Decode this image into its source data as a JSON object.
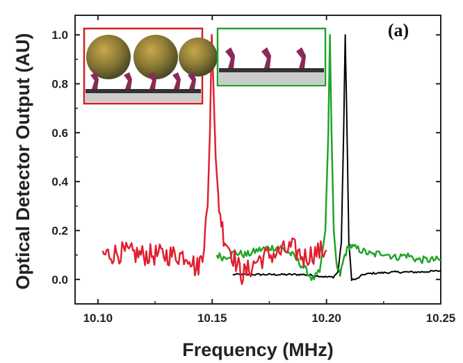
{
  "chart_data": {
    "type": "line",
    "xlabel": "Frequency (MHz)",
    "ylabel": "Optical Detector Output (AU)",
    "panel_label": "(a)",
    "xlim": [
      10.09,
      10.25
    ],
    "ylim": [
      -0.1,
      1.08
    ],
    "x_ticks": [
      10.1,
      10.15,
      10.2,
      10.25
    ],
    "x_tick_labels": [
      "10.10",
      "10.15",
      "10.20",
      "10.25"
    ],
    "y_ticks": [
      0.0,
      0.2,
      0.4,
      0.6,
      0.8,
      1.0
    ],
    "y_tick_labels": [
      "0.0",
      "0.2",
      "0.4",
      "0.6",
      "0.8",
      "1.0"
    ],
    "grid": false,
    "series": [
      {
        "color": "#000000",
        "x": [
          10.159,
          10.17,
          10.18,
          10.19,
          10.196,
          10.2,
          10.203,
          10.205,
          10.2065,
          10.2075,
          10.2082,
          10.209,
          10.2098,
          10.211,
          10.213,
          10.216,
          10.22,
          10.23,
          10.24,
          10.25
        ],
        "y": [
          0.02,
          0.02,
          0.02,
          0.02,
          0.015,
          0.01,
          0.01,
          0.03,
          0.15,
          0.6,
          1.0,
          0.6,
          0.15,
          0.0,
          0.0,
          0.02,
          0.025,
          0.03,
          0.03,
          0.035
        ]
      },
      {
        "color": "#22a32a",
        "x": [
          10.152,
          10.155,
          10.16,
          10.165,
          10.17,
          10.175,
          10.18,
          10.185,
          10.19,
          10.194,
          10.197,
          10.1995,
          10.2008,
          10.2015,
          10.2022,
          10.2032,
          10.2045,
          10.206,
          10.208,
          10.21,
          10.212,
          10.215,
          10.22,
          10.225,
          10.23,
          10.235,
          10.24,
          10.245,
          10.25
        ],
        "y": [
          0.1,
          0.09,
          0.11,
          0.1,
          0.12,
          0.13,
          0.13,
          0.1,
          0.05,
          0.0,
          0.03,
          0.2,
          0.6,
          1.0,
          0.6,
          0.2,
          0.05,
          0.02,
          0.1,
          0.14,
          0.13,
          0.12,
          0.1,
          0.11,
          0.09,
          0.1,
          0.08,
          0.08,
          0.08
        ]
      },
      {
        "color": "#e02030",
        "x": [
          10.102,
          10.11,
          10.12,
          10.13,
          10.14,
          10.143,
          10.145,
          10.1465,
          10.148,
          10.149,
          10.1498,
          10.1505,
          10.1515,
          10.153,
          10.155,
          10.158,
          10.161,
          10.163,
          10.165,
          10.17,
          10.175,
          10.18,
          10.185,
          10.19,
          10.195,
          10.2
        ],
        "y": [
          0.1,
          0.11,
          0.1,
          0.1,
          0.1,
          0.04,
          0.08,
          0.15,
          0.3,
          0.6,
          1.0,
          0.8,
          0.5,
          0.3,
          0.18,
          0.12,
          0.06,
          0.02,
          0.03,
          0.08,
          0.1,
          0.11,
          0.13,
          0.09,
          0.11,
          0.12
        ]
      }
    ],
    "insets": [
      {
        "series": 2,
        "border_color": "#d02020"
      },
      {
        "series": 1,
        "border_color": "#22a32a"
      }
    ]
  }
}
